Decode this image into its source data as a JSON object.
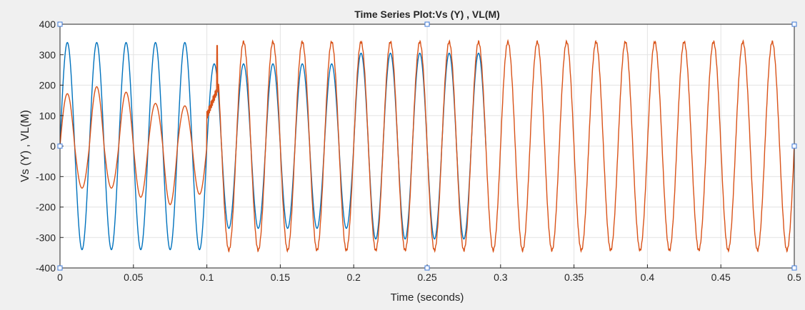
{
  "chart_data": {
    "type": "line",
    "title": "Time Series Plot:Vs (Y) , VL(M)",
    "xlabel": "Time (seconds)",
    "ylabel": "Vs (Y) , VL(M)",
    "xlim": [
      0,
      0.5
    ],
    "ylim": [
      -400,
      400
    ],
    "x_ticks": [
      "0",
      "0.05",
      "0.1",
      "0.15",
      "0.2",
      "0.25",
      "0.3",
      "0.35",
      "0.4",
      "0.45",
      "0.5"
    ],
    "y_ticks": [
      "400",
      "300",
      "200",
      "100",
      "0",
      "-100",
      "-200",
      "-300",
      "-400"
    ],
    "grid": true,
    "frequency_hz": 50,
    "series": [
      {
        "color": "#0072bd",
        "segments": [
          {
            "t_start": 0,
            "t_end": 0.1,
            "amplitude": 340
          },
          {
            "t_start": 0.1,
            "t_end": 0.2,
            "amplitude": 270
          },
          {
            "t_start": 0.2,
            "t_end": 0.29,
            "amplitude": 305
          }
        ]
      },
      {
        "color": "#d95319",
        "peaks": [
          {
            "t": 0.005,
            "v": 172
          },
          {
            "t": 0.015,
            "v": -138
          },
          {
            "t": 0.025,
            "v": 195
          },
          {
            "t": 0.035,
            "v": -138
          },
          {
            "t": 0.045,
            "v": 177
          },
          {
            "t": 0.055,
            "v": -168
          },
          {
            "t": 0.065,
            "v": 140
          },
          {
            "t": 0.075,
            "v": -192
          },
          {
            "t": 0.085,
            "v": 132
          },
          {
            "t": 0.095,
            "v": -158
          }
        ],
        "transient": {
          "t_start": 0.1,
          "t_end": 0.108,
          "spike_t": 0.107,
          "spike_v": 330
        },
        "steady_amplitude": 342
      }
    ]
  }
}
